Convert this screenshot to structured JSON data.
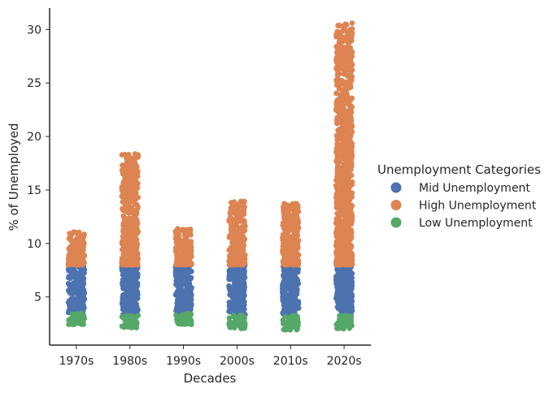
{
  "chart_data": {
    "type": "scatter",
    "subtype": "strip",
    "xlabel": "Decades",
    "ylabel": "% of Unemployed",
    "categories": [
      "1970s",
      "1980s",
      "1990s",
      "2000s",
      "2010s",
      "2020s"
    ],
    "ylim": [
      0.5,
      32
    ],
    "yticks": [
      5,
      10,
      15,
      20,
      25,
      30
    ],
    "grid": false,
    "legend": {
      "title": "Unemployment Categories",
      "placement": "right"
    },
    "series": [
      {
        "name": "Mid Unemployment",
        "color": "#4c72b0",
        "ranges": [
          [
            3.5,
            8.0
          ],
          [
            3.3,
            8.0
          ],
          [
            3.5,
            8.0
          ],
          [
            3.3,
            8.0
          ],
          [
            3.3,
            8.0
          ],
          [
            3.3,
            8.0
          ]
        ]
      },
      {
        "name": "High Unemployment",
        "color": "#dd8452",
        "ranges": [
          [
            8.0,
            11.1
          ],
          [
            8.0,
            18.4
          ],
          [
            8.0,
            11.4
          ],
          [
            8.0,
            14.0
          ],
          [
            8.0,
            13.8
          ],
          [
            8.0,
            30.6
          ]
        ],
        "outliers": [
          [],
          [
            18.0,
            18.3
          ],
          [],
          [
            13.9
          ],
          [
            13.7
          ],
          [
            30.6,
            24.7,
            22.6,
            22.6,
            21.5,
            20.8,
            19.0,
            18.8
          ]
        ]
      },
      {
        "name": "Low Unemployment",
        "color": "#55a868",
        "ranges": [
          [
            2.4,
            3.5
          ],
          [
            2.1,
            3.3
          ],
          [
            2.4,
            3.5
          ],
          [
            2.0,
            3.3
          ],
          [
            1.9,
            3.3
          ],
          [
            2.0,
            3.3
          ]
        ]
      }
    ]
  }
}
